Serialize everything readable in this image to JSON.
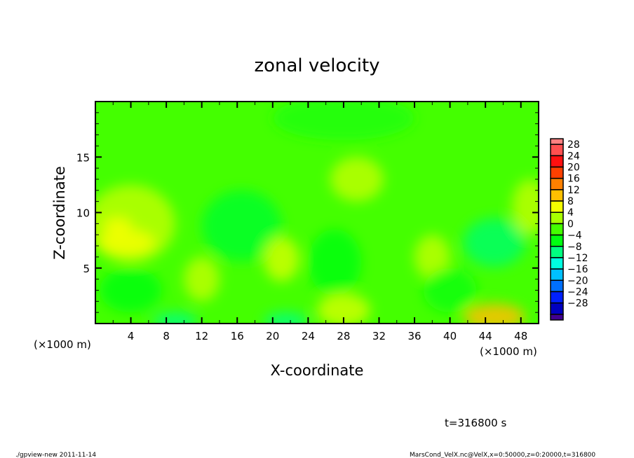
{
  "chart_data": {
    "type": "heatmap",
    "title": "zonal velocity",
    "xlabel": "X-coordinate",
    "ylabel": "Z-coordinate",
    "x_unit_label": "(×1000 m)",
    "y_unit_label": "(×1000 m)",
    "xlim": [
      0,
      50
    ],
    "ylim": [
      0,
      20
    ],
    "xticks": [
      4,
      8,
      12,
      16,
      20,
      24,
      28,
      32,
      36,
      40,
      44,
      48
    ],
    "yticks": [
      5,
      10,
      15
    ],
    "colorbar": {
      "levels": [
        28,
        24,
        20,
        16,
        12,
        8,
        4,
        0,
        -4,
        -8,
        -12,
        -16,
        -20,
        -24,
        -28
      ],
      "bands": [
        {
          "lo": 28,
          "hi": 32,
          "color": "#ff8080"
        },
        {
          "lo": 24,
          "hi": 28,
          "color": "#ff5050"
        },
        {
          "lo": 20,
          "hi": 24,
          "color": "#ff1010"
        },
        {
          "lo": 16,
          "hi": 20,
          "color": "#ff4000"
        },
        {
          "lo": 12,
          "hi": 16,
          "color": "#ff8000"
        },
        {
          "lo": 8,
          "hi": 12,
          "color": "#ffc000"
        },
        {
          "lo": 4,
          "hi": 8,
          "color": "#f4ff00"
        },
        {
          "lo": 0,
          "hi": 4,
          "color": "#a8ff00"
        },
        {
          "lo": -4,
          "hi": 0,
          "color": "#44ff00"
        },
        {
          "lo": -8,
          "hi": -4,
          "color": "#00ff10"
        },
        {
          "lo": -12,
          "hi": -8,
          "color": "#00ff80"
        },
        {
          "lo": -16,
          "hi": -12,
          "color": "#00ffe0"
        },
        {
          "lo": -20,
          "hi": -16,
          "color": "#00c0ff"
        },
        {
          "lo": -24,
          "hi": -20,
          "color": "#0070ff"
        },
        {
          "lo": -28,
          "hi": -24,
          "color": "#0020ff"
        },
        {
          "lo": -32,
          "hi": -28,
          "color": "#0000c0"
        },
        {
          "lo": -36,
          "hi": -32,
          "color": "#400090"
        }
      ]
    },
    "background_value": -2,
    "features": [
      {
        "x": 4,
        "z": 9,
        "rx": 5,
        "rz": 3.5,
        "value": 3
      },
      {
        "x": 3.5,
        "z": 7.3,
        "rx": 3.2,
        "rz": 1.2,
        "value": 6
      },
      {
        "x": 2.5,
        "z": 8.8,
        "rx": 1.6,
        "rz": 0.8,
        "value": 6
      },
      {
        "x": 16.5,
        "z": 8.8,
        "rx": 4.5,
        "rz": 3.2,
        "value": -7
      },
      {
        "x": 45,
        "z": 7.3,
        "rx": 3.5,
        "rz": 2.2,
        "value": -9
      },
      {
        "x": 45,
        "z": 0.6,
        "rx": 3.5,
        "rz": 1.2,
        "value": 10
      },
      {
        "x": 9,
        "z": 0.2,
        "rx": 2.5,
        "rz": 0.8,
        "value": -10
      },
      {
        "x": 21.5,
        "z": 0.2,
        "rx": 2.5,
        "rz": 0.8,
        "value": -10
      },
      {
        "x": 27,
        "z": 5.5,
        "rx": 3,
        "rz": 3,
        "value": -6
      },
      {
        "x": 4,
        "z": 3,
        "rx": 3.5,
        "rz": 2,
        "value": -6
      },
      {
        "x": 21,
        "z": 5.8,
        "rx": 2,
        "rz": 2,
        "value": 4
      },
      {
        "x": 29.5,
        "z": 13,
        "rx": 3,
        "rz": 2,
        "value": 3
      },
      {
        "x": 49,
        "z": 10.5,
        "rx": 2,
        "rz": 2.5,
        "value": 3
      },
      {
        "x": 28,
        "z": 1.2,
        "rx": 3,
        "rz": 1.5,
        "value": 4
      },
      {
        "x": 28,
        "z": 18.5,
        "rx": 8,
        "rz": 2,
        "value": -4
      },
      {
        "x": 38,
        "z": 6,
        "rx": 2,
        "rz": 2,
        "value": 3
      },
      {
        "x": 40,
        "z": 3,
        "rx": 3,
        "rz": 2,
        "value": -5
      },
      {
        "x": 12,
        "z": 4,
        "rx": 2,
        "rz": 2,
        "value": 3
      }
    ]
  },
  "annotations": {
    "time": "t=316800 s",
    "footer_left": "./gpview-new  2011-11-14",
    "footer_right": "MarsCond_VelX.nc@VelX,x=0:50000,z=0:20000,t=316800"
  }
}
